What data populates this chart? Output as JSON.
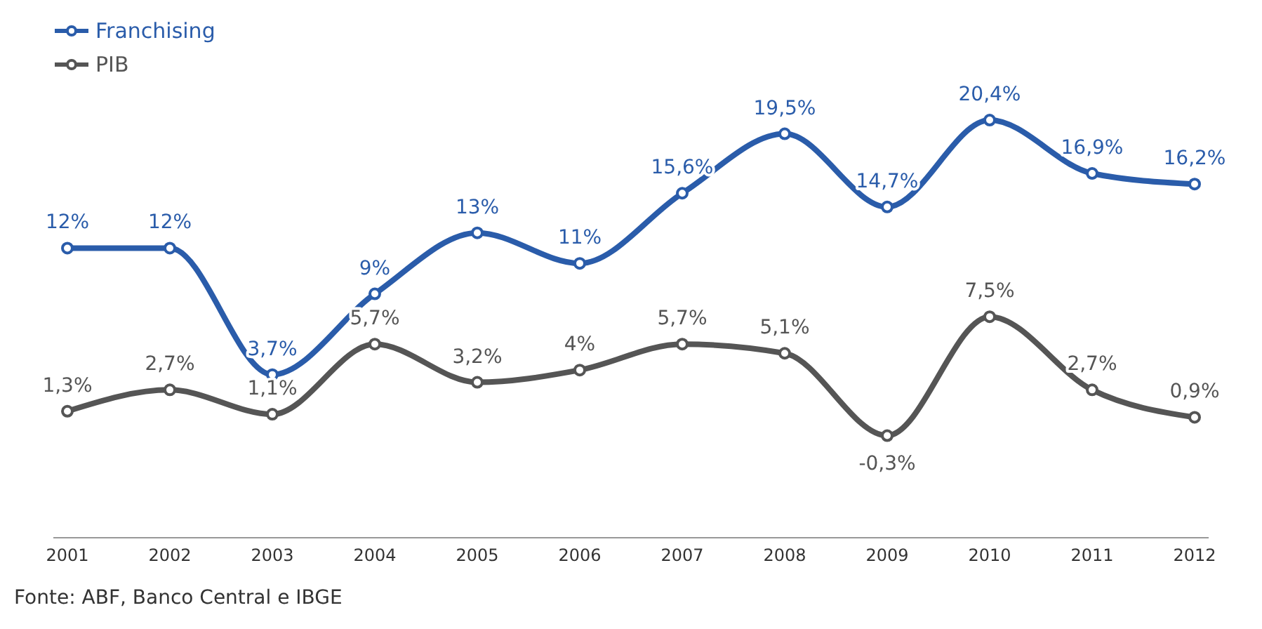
{
  "chart_data": {
    "type": "line",
    "categories": [
      "2001",
      "2002",
      "2003",
      "2004",
      "2005",
      "2006",
      "2007",
      "2008",
      "2009",
      "2010",
      "2011",
      "2012"
    ],
    "series": [
      {
        "name": "Franchising",
        "color": "#2a5caa",
        "values": [
          12,
          12,
          3.7,
          9,
          13,
          11,
          15.6,
          19.5,
          14.7,
          20.4,
          16.9,
          16.2
        ],
        "value_labels": [
          "12%",
          "12%",
          "3,7%",
          "9%",
          "13%",
          "11%",
          "15,6%",
          "19,5%",
          "14,7%",
          "20,4%",
          "16,9%",
          "16,2%"
        ]
      },
      {
        "name": "PIB",
        "color": "#555555",
        "values": [
          1.3,
          2.7,
          1.1,
          5.7,
          3.2,
          4,
          5.7,
          5.1,
          -0.3,
          7.5,
          2.7,
          0.9
        ],
        "value_labels": [
          "1,3%",
          "2,7%",
          "1,1%",
          "5,7%",
          "3,2%",
          "4%",
          "5,7%",
          "5,1%",
          "-0,3%",
          "7,5%",
          "2,7%",
          "0,9%"
        ]
      }
    ],
    "legend": "top left",
    "marker": "circle",
    "line_style": "solid",
    "annotations": [
      "Fonte: ABF, Banco Central e IBGE"
    ]
  }
}
